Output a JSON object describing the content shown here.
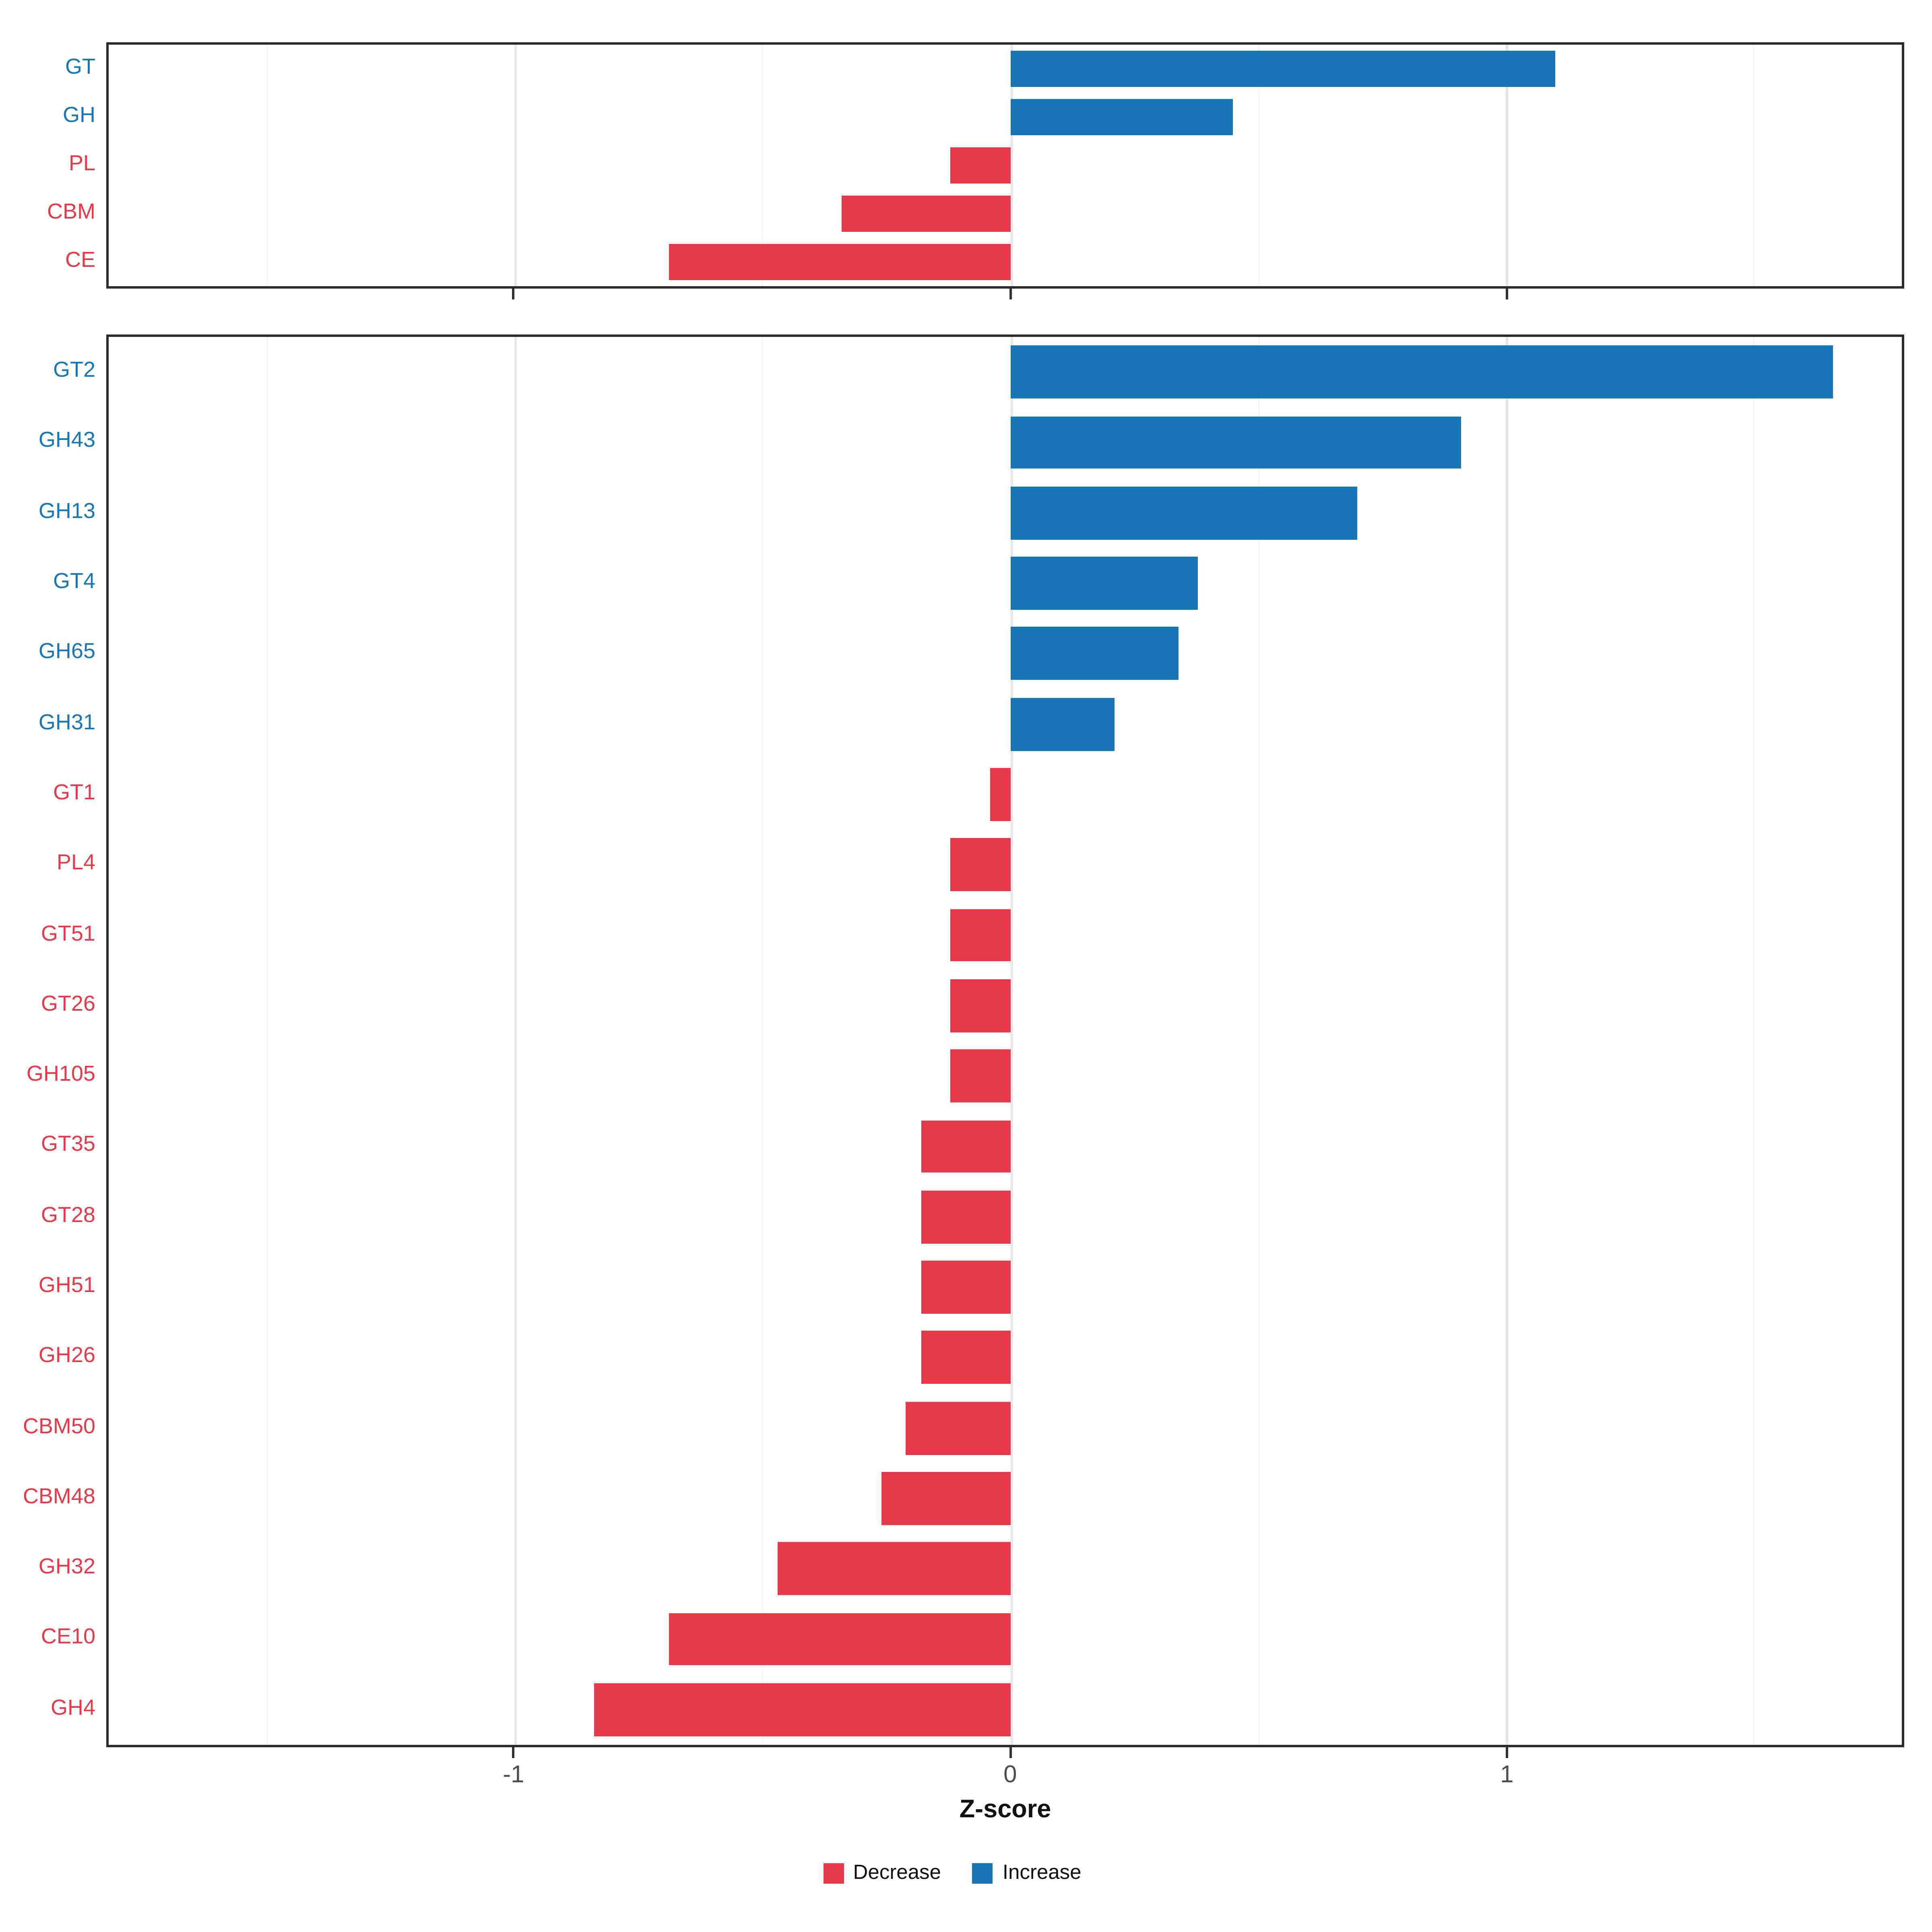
{
  "chart_data": {
    "type": "bar",
    "orientation": "horizontal",
    "title": "",
    "xlabel": "Z-score",
    "x_ticks": [
      -1,
      0,
      1
    ],
    "x_tick_labels": [
      "-1",
      "0",
      "1"
    ],
    "x_minor_ticks": [
      -1.5,
      -0.5,
      0.5,
      1.5
    ],
    "xlim": [
      -1.82,
      1.8
    ],
    "colors": {
      "increase": "#1776B5",
      "decrease": "#E8394B"
    },
    "legend": [
      {
        "key": "decrease",
        "label": "Decrease"
      },
      {
        "key": "increase",
        "label": "Increase"
      }
    ],
    "panels": [
      {
        "name": "cazyme-class",
        "rows": [
          {
            "category": "GT",
            "value": 1.1
          },
          {
            "category": "GH",
            "value": 0.45
          },
          {
            "category": "PL",
            "value": -0.12
          },
          {
            "category": "CBM",
            "value": -0.34
          },
          {
            "category": "CE",
            "value": -0.69
          }
        ]
      },
      {
        "name": "cazyme-family",
        "rows": [
          {
            "category": "GT2",
            "value": 1.66
          },
          {
            "category": "GH43",
            "value": 0.91
          },
          {
            "category": "GH13",
            "value": 0.7
          },
          {
            "category": "GT4",
            "value": 0.38
          },
          {
            "category": "GH65",
            "value": 0.34
          },
          {
            "category": "GH31",
            "value": 0.21
          },
          {
            "category": "GT1",
            "value": -0.04
          },
          {
            "category": "PL4",
            "value": -0.12
          },
          {
            "category": "GT51",
            "value": -0.12
          },
          {
            "category": "GT26",
            "value": -0.12
          },
          {
            "category": "GH105",
            "value": -0.12
          },
          {
            "category": "GT35",
            "value": -0.18
          },
          {
            "category": "GT28",
            "value": -0.18
          },
          {
            "category": "GH51",
            "value": -0.18
          },
          {
            "category": "GH26",
            "value": -0.18
          },
          {
            "category": "CBM50",
            "value": -0.21
          },
          {
            "category": "CBM48",
            "value": -0.26
          },
          {
            "category": "GH32",
            "value": -0.47
          },
          {
            "category": "CE10",
            "value": -0.69
          },
          {
            "category": "GH4",
            "value": -0.84
          }
        ]
      }
    ]
  }
}
